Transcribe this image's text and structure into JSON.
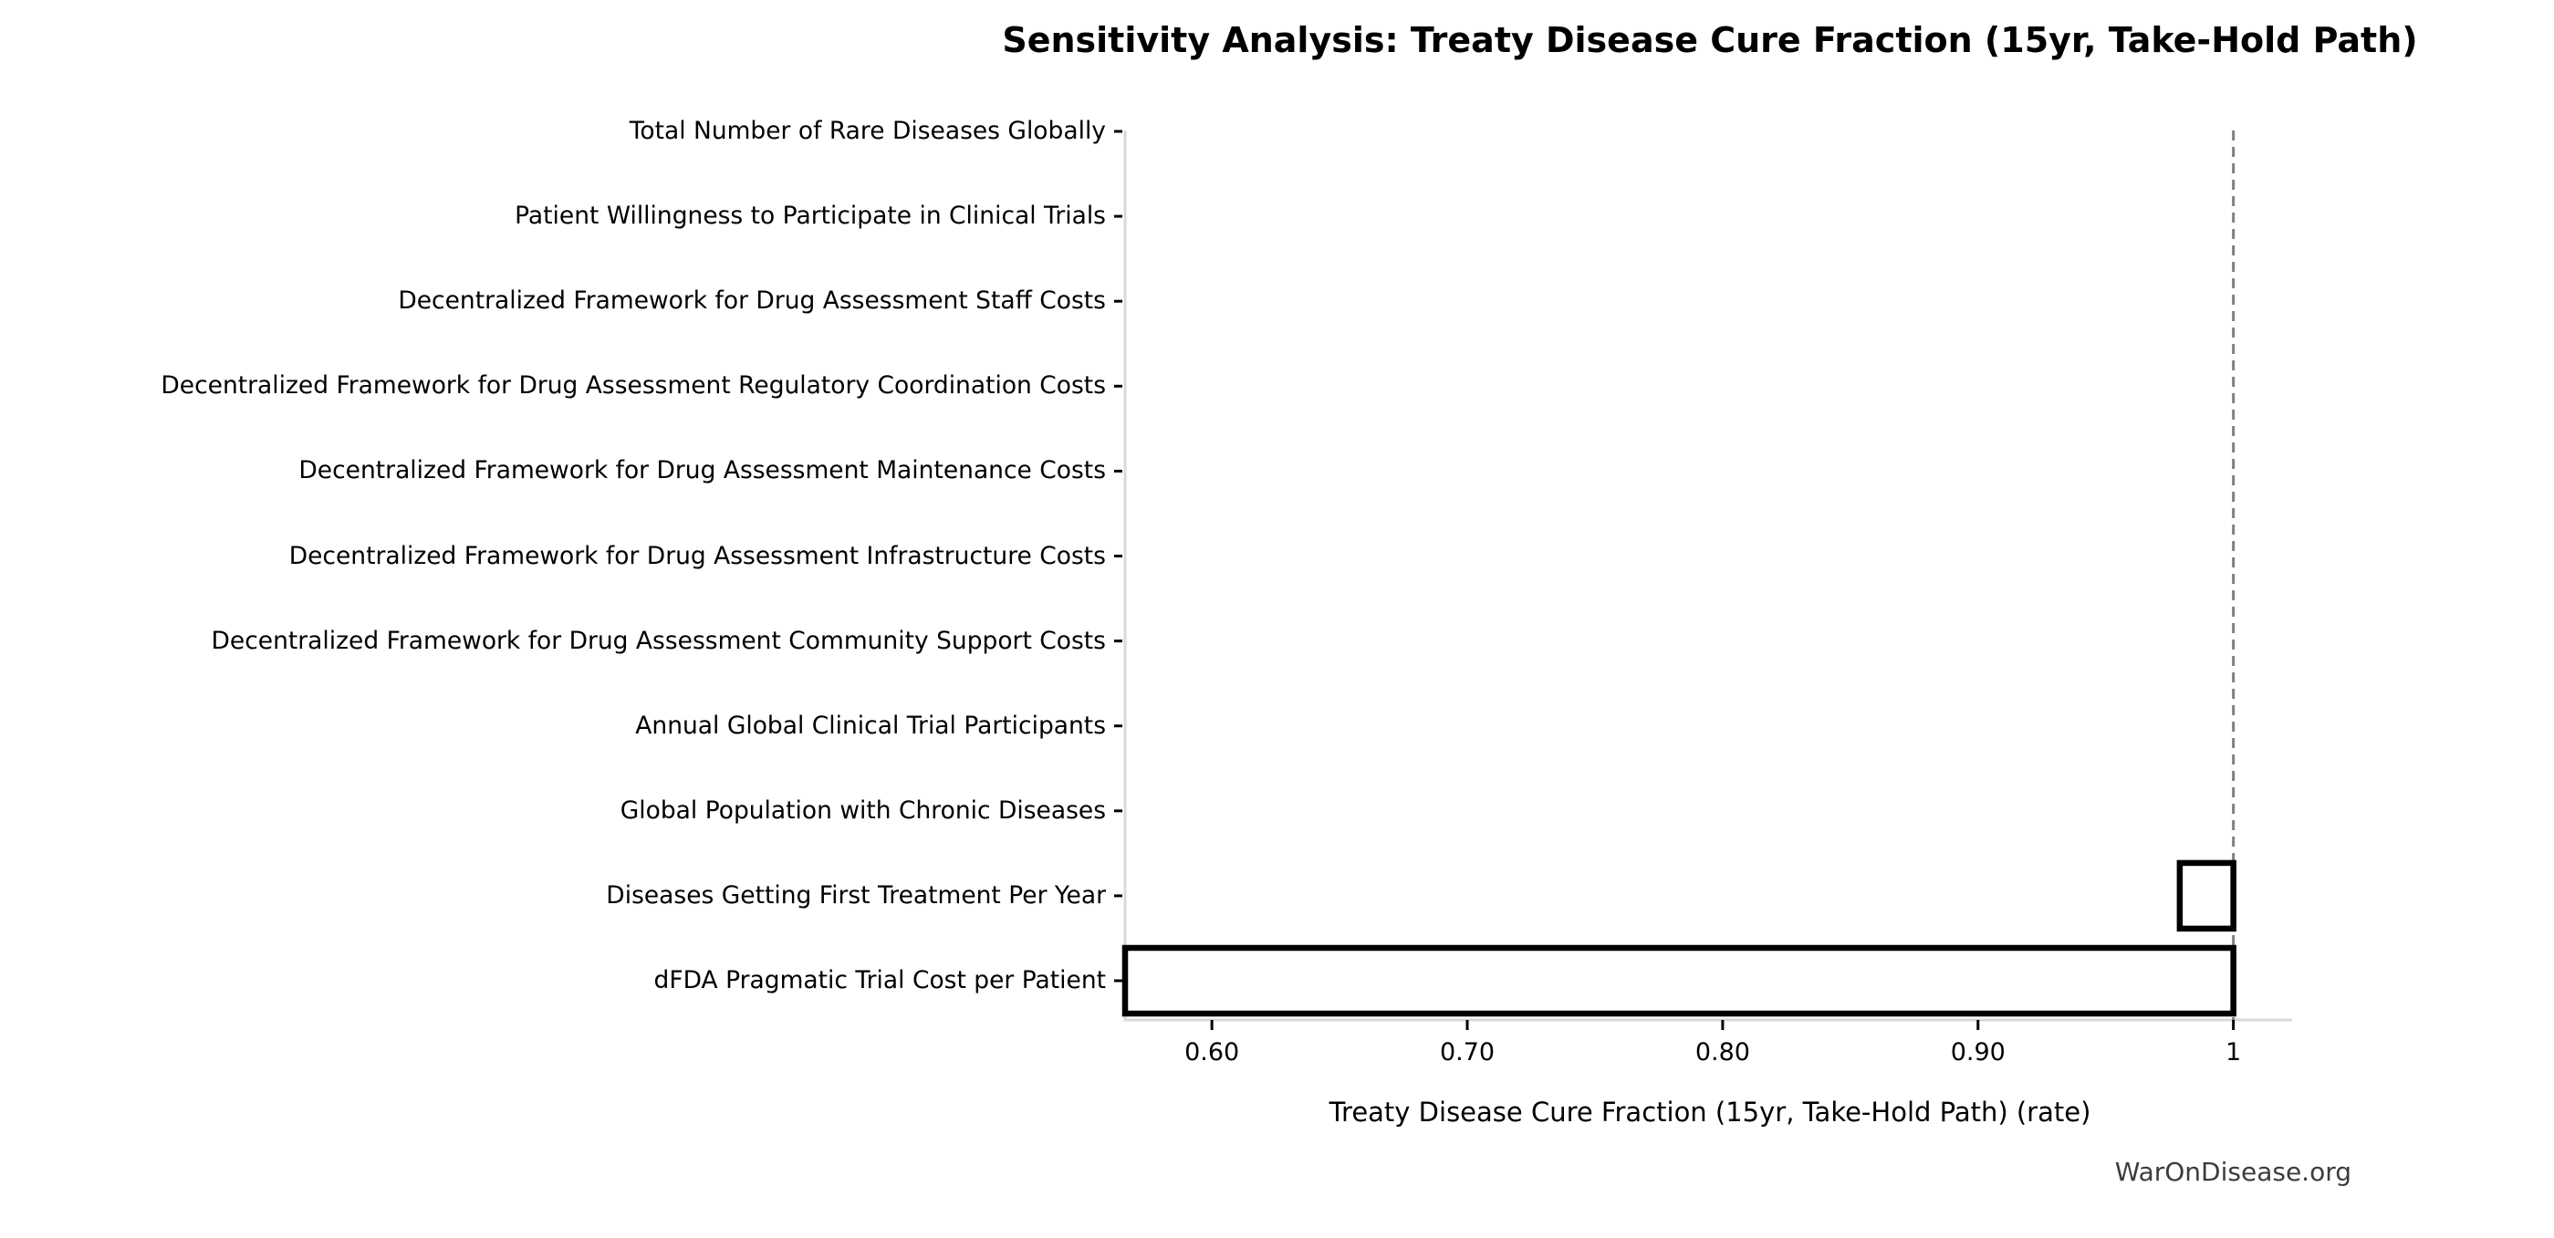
{
  "chart_data": {
    "type": "bar",
    "orientation": "horizontal",
    "title": "Sensitivity Analysis: Treaty Disease Cure Fraction (15yr, Take-Hold Path)",
    "xlabel": "Treaty Disease Cure Fraction (15yr, Take-Hold Path) (rate)",
    "watermark": "WarOnDisease.org",
    "baseline": 1.0,
    "xlim": [
      0.566,
      1.023
    ],
    "xticks": [
      0.6,
      0.7,
      0.8,
      0.9,
      1.0
    ],
    "xtick_labels": [
      "0.60",
      "0.70",
      "0.80",
      "0.90",
      "1"
    ],
    "grid": false,
    "legend": false,
    "categories": [
      "Total Number of Rare Diseases Globally",
      "Patient Willingness to Participate in Clinical Trials",
      "Decentralized Framework for Drug Assessment Staff Costs",
      "Decentralized Framework for Drug Assessment Regulatory Coordination Costs",
      "Decentralized Framework for Drug Assessment Maintenance Costs",
      "Decentralized Framework for Drug Assessment Infrastructure Costs",
      "Decentralized Framework for Drug Assessment Community Support Costs",
      "Annual Global Clinical Trial Participants",
      "Global Population with Chronic Diseases",
      "Diseases Getting First Treatment Per Year",
      "dFDA Pragmatic Trial Cost per Patient"
    ],
    "bars": [
      {
        "low": 1.0,
        "high": 1.0
      },
      {
        "low": 1.0,
        "high": 1.0
      },
      {
        "low": 1.0,
        "high": 1.0
      },
      {
        "low": 1.0,
        "high": 1.0
      },
      {
        "low": 1.0,
        "high": 1.0
      },
      {
        "low": 1.0,
        "high": 1.0
      },
      {
        "low": 1.0,
        "high": 1.0
      },
      {
        "low": 1.0,
        "high": 1.0
      },
      {
        "low": 1.0,
        "high": 1.0
      },
      {
        "low": 0.979,
        "high": 1.0
      },
      {
        "low": 0.566,
        "high": 1.0
      }
    ],
    "colors": {
      "bar_fill": "#ffffff",
      "bar_edge": "#000000",
      "baseline_line": "#808080",
      "axis_spine": "#d9d9d9",
      "tick_mark": "#000000",
      "text": "#000000",
      "watermark_text": "#3c3c3c",
      "background": "#ffffff"
    }
  }
}
